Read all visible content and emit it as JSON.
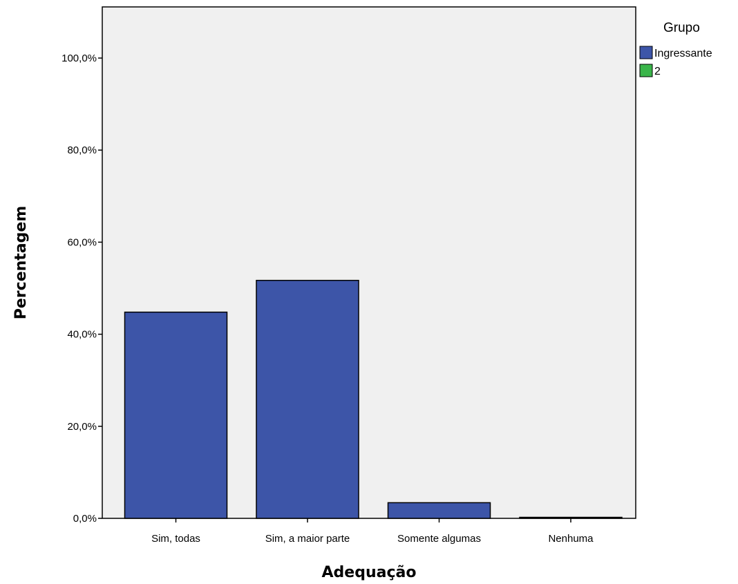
{
  "chart_data": {
    "type": "bar",
    "xlabel": "Adequação",
    "ylabel": "Percentagem",
    "categories": [
      "Sim, todas",
      "Sim, a maior parte",
      "Somente algumas",
      "Nenhuma"
    ],
    "series": [
      {
        "name": "Ingressante",
        "color": "#3d55a8",
        "values": [
          44.8,
          51.7,
          3.4,
          0.0
        ]
      }
    ],
    "ylim": [
      0,
      100
    ],
    "yticks": [
      0,
      20,
      40,
      60,
      80,
      100
    ],
    "ytick_labels": [
      "0,0%",
      "20,0%",
      "40,0%",
      "60,0%",
      "80,0%",
      "100,0%"
    ],
    "grid": false,
    "plot_background": "#f0f0f0",
    "legend": {
      "title": "Grupo",
      "placement": "right",
      "entries": [
        {
          "label": "Ingressante",
          "color": "#3d55a8"
        },
        {
          "label": "2",
          "color": "#3ab54a"
        }
      ]
    }
  }
}
